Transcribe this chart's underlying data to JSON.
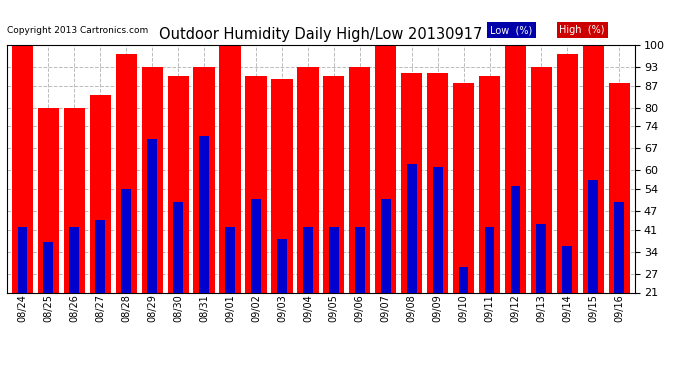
{
  "title": "Outdoor Humidity Daily High/Low 20130917",
  "copyright": "Copyright 2013 Cartronics.com",
  "categories": [
    "08/24",
    "08/25",
    "08/26",
    "08/27",
    "08/28",
    "08/29",
    "08/30",
    "08/31",
    "09/01",
    "09/02",
    "09/03",
    "09/04",
    "09/05",
    "09/06",
    "09/07",
    "09/08",
    "09/09",
    "09/10",
    "09/11",
    "09/12",
    "09/13",
    "09/14",
    "09/15",
    "09/16"
  ],
  "high_values": [
    100,
    80,
    80,
    84,
    97,
    93,
    90,
    93,
    100,
    90,
    89,
    93,
    90,
    93,
    100,
    91,
    91,
    88,
    90,
    100,
    93,
    97,
    100,
    88
  ],
  "low_values": [
    42,
    37,
    42,
    44,
    54,
    70,
    50,
    71,
    42,
    51,
    38,
    42,
    42,
    42,
    51,
    62,
    61,
    29,
    42,
    55,
    43,
    36,
    57,
    50
  ],
  "high_color": "#ff0000",
  "low_color": "#0000cc",
  "bg_color": "#ffffff",
  "grid_color": "#bbbbbb",
  "ylim_min": 21,
  "ylim_max": 100,
  "yticks": [
    21,
    27,
    34,
    41,
    47,
    54,
    60,
    67,
    74,
    80,
    87,
    93,
    100
  ],
  "legend_low_bg": "#0000aa",
  "legend_high_bg": "#cc0000",
  "legend_low_label": "Low  (%)",
  "legend_high_label": "High  (%)"
}
